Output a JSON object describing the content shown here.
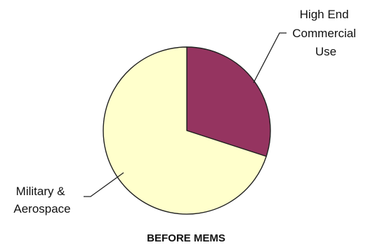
{
  "chart_data": {
    "type": "pie",
    "title": "BEFORE MEMS",
    "slices": [
      {
        "label_lines": [
          "High End",
          "Commercial",
          "Use"
        ],
        "value": 30,
        "color": "#953460"
      },
      {
        "label_lines": [
          "Military &",
          "Aerospace"
        ],
        "value": 70,
        "color": "#FFFFCC"
      }
    ],
    "start_angle_deg": 0,
    "direction": "clockwise",
    "outline_color": "#222222",
    "legend": "none"
  }
}
